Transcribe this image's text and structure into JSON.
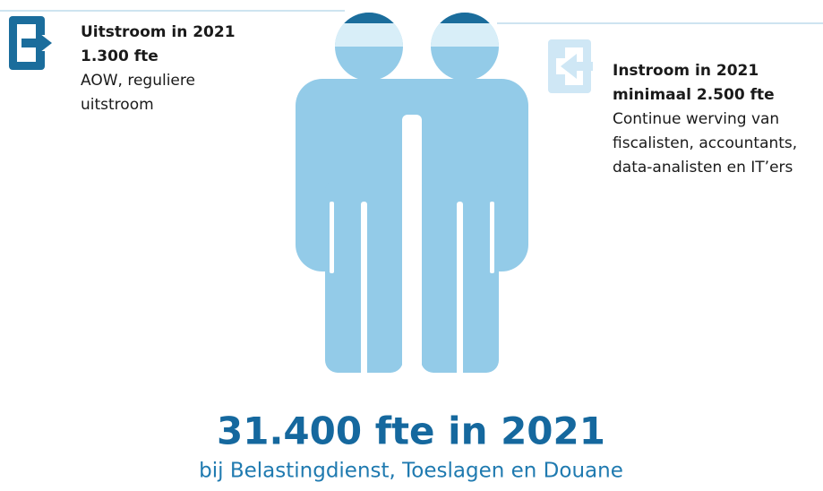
{
  "outflow": {
    "title": "Uitstroom in 2021",
    "amount": "1.300 fte",
    "description": [
      "AOW, reguliere",
      "uitstroom"
    ]
  },
  "inflow": {
    "title": "Instroom in 2021",
    "amount": "minimaal 2.500 fte",
    "description": [
      "Continue werving van",
      "fiscalisten, accountants,",
      "data-analisten en IT’ers"
    ]
  },
  "total": {
    "title": "31.400 fte in 2021",
    "subtitle": "bij Belastingdienst, Toeslagen en Douane"
  }
}
